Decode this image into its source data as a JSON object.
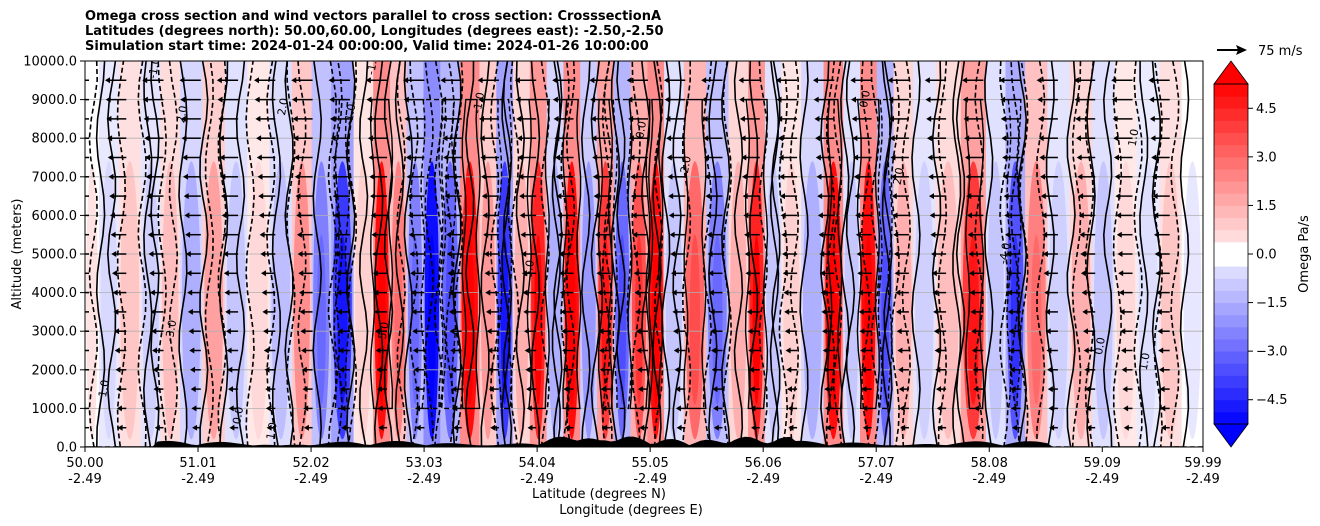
{
  "chart_data": {
    "type": "heatmap",
    "title_lines": [
      "Omega cross section and wind vectors parallel to cross section: CrosssectionA",
      "Latitudes (degrees north): 50.00,60.00, Longitudes (degrees east): -2.50,-2.50",
      "Simulation start time: 2024-01-24 00:00:00, Valid time: 2024-01-26 10:00:00"
    ],
    "xlabel": "Latitude (degrees N)",
    "xlabel2": "Longitude (degrees E)",
    "ylabel": "Altitude (meters)",
    "xlim": [
      50.0,
      59.99
    ],
    "ylim": [
      0,
      10000
    ],
    "x_ticks": [
      {
        "value": 50.0,
        "lat": "50.00",
        "lon": "-2.49"
      },
      {
        "value": 51.01,
        "lat": "51.01",
        "lon": "-2.49"
      },
      {
        "value": 52.02,
        "lat": "52.02",
        "lon": "-2.49"
      },
      {
        "value": 53.03,
        "lat": "53.03",
        "lon": "-2.49"
      },
      {
        "value": 54.04,
        "lat": "54.04",
        "lon": "-2.49"
      },
      {
        "value": 55.05,
        "lat": "55.05",
        "lon": "-2.49"
      },
      {
        "value": 56.06,
        "lat": "56.06",
        "lon": "-2.49"
      },
      {
        "value": 57.07,
        "lat": "57.07",
        "lon": "-2.49"
      },
      {
        "value": 58.08,
        "lat": "58.08",
        "lon": "-2.49"
      },
      {
        "value": 59.09,
        "lat": "59.09",
        "lon": "-2.49"
      },
      {
        "value": 59.99,
        "lat": "59.99",
        "lon": "-2.49"
      }
    ],
    "y_ticks": [
      {
        "value": 0,
        "label": "0.0"
      },
      {
        "value": 1000,
        "label": "1000.0"
      },
      {
        "value": 2000,
        "label": "2000.0"
      },
      {
        "value": 3000,
        "label": "3000.0"
      },
      {
        "value": 4000,
        "label": "4000.0"
      },
      {
        "value": 5000,
        "label": "5000.0"
      },
      {
        "value": 6000,
        "label": "6000.0"
      },
      {
        "value": 7000,
        "label": "7000.0"
      },
      {
        "value": 8000,
        "label": "8000.0"
      },
      {
        "value": 9000,
        "label": "9000.0"
      },
      {
        "value": 10000,
        "label": "10000.0"
      }
    ],
    "colorbar": {
      "label": "Omega Pa/s",
      "range": [
        -5.25,
        5.25
      ],
      "step": 0.375,
      "ticks": [
        {
          "value": 4.5,
          "label": "4.5"
        },
        {
          "value": 3.0,
          "label": "3.0"
        },
        {
          "value": 1.5,
          "label": "1.5"
        },
        {
          "value": 0.0,
          "label": "0.0"
        },
        {
          "value": -1.5,
          "label": "−1.5"
        },
        {
          "value": -3.0,
          "label": "−3.0"
        },
        {
          "value": -4.5,
          "label": "−4.5"
        }
      ]
    },
    "wind_key": {
      "label": "75 m/s"
    },
    "omega_columns": [
      {
        "lat": 50.05,
        "omega": 0.4
      },
      {
        "lat": 50.2,
        "omega": -0.6
      },
      {
        "lat": 50.4,
        "omega": 1.0
      },
      {
        "lat": 50.6,
        "omega": -0.8
      },
      {
        "lat": 50.75,
        "omega": 1.2
      },
      {
        "lat": 50.95,
        "omega": -1.5
      },
      {
        "lat": 51.15,
        "omega": 1.8
      },
      {
        "lat": 51.35,
        "omega": -1.0
      },
      {
        "lat": 51.55,
        "omega": 0.6
      },
      {
        "lat": 51.75,
        "omega": -1.2
      },
      {
        "lat": 51.95,
        "omega": 2.2
      },
      {
        "lat": 52.1,
        "omega": -2.5
      },
      {
        "lat": 52.3,
        "omega": -4.0
      },
      {
        "lat": 52.5,
        "omega": 0.8
      },
      {
        "lat": 52.65,
        "omega": 5.0
      },
      {
        "lat": 52.8,
        "omega": 2.5
      },
      {
        "lat": 52.95,
        "omega": -2.5
      },
      {
        "lat": 53.1,
        "omega": -5.0
      },
      {
        "lat": 53.25,
        "omega": -3.0
      },
      {
        "lat": 53.45,
        "omega": 5.0
      },
      {
        "lat": 53.6,
        "omega": 2.0
      },
      {
        "lat": 53.75,
        "omega": -4.0
      },
      {
        "lat": 53.9,
        "omega": 1.5
      },
      {
        "lat": 54.05,
        "omega": 4.5
      },
      {
        "lat": 54.2,
        "omega": -1.5
      },
      {
        "lat": 54.35,
        "omega": 5.0
      },
      {
        "lat": 54.5,
        "omega": -2.0
      },
      {
        "lat": 54.65,
        "omega": 4.0
      },
      {
        "lat": 54.8,
        "omega": -3.0
      },
      {
        "lat": 54.95,
        "omega": 3.5
      },
      {
        "lat": 55.1,
        "omega": 5.0
      },
      {
        "lat": 55.25,
        "omega": -1.0
      },
      {
        "lat": 55.45,
        "omega": 3.0
      },
      {
        "lat": 55.65,
        "omega": -2.5
      },
      {
        "lat": 55.85,
        "omega": 1.5
      },
      {
        "lat": 56.0,
        "omega": 4.5
      },
      {
        "lat": 56.15,
        "omega": -1.0
      },
      {
        "lat": 56.3,
        "omega": 0.8
      },
      {
        "lat": 56.5,
        "omega": -1.5
      },
      {
        "lat": 56.7,
        "omega": 5.0
      },
      {
        "lat": 56.85,
        "omega": -1.0
      },
      {
        "lat": 57.0,
        "omega": 5.0
      },
      {
        "lat": 57.15,
        "omega": -3.0
      },
      {
        "lat": 57.3,
        "omega": 1.5
      },
      {
        "lat": 57.5,
        "omega": -0.8
      },
      {
        "lat": 57.7,
        "omega": 1.2
      },
      {
        "lat": 57.95,
        "omega": 4.0
      },
      {
        "lat": 58.15,
        "omega": -1.0
      },
      {
        "lat": 58.3,
        "omega": -3.5
      },
      {
        "lat": 58.5,
        "omega": 2.5
      },
      {
        "lat": 58.7,
        "omega": -0.8
      },
      {
        "lat": 58.9,
        "omega": 1.5
      },
      {
        "lat": 59.1,
        "omega": -1.0
      },
      {
        "lat": 59.3,
        "omega": 0.6
      },
      {
        "lat": 59.5,
        "omega": -0.5
      },
      {
        "lat": 59.7,
        "omega": 1.0
      },
      {
        "lat": 59.9,
        "omega": -0.3
      }
    ],
    "contour_labels": [
      {
        "text": "1.0",
        "lat": 50.2,
        "alt": 1500
      },
      {
        "text": "-1.0",
        "lat": 50.65,
        "alt": 9800
      },
      {
        "text": "2.0",
        "lat": 50.9,
        "alt": 8600
      },
      {
        "text": "-3.0",
        "lat": 50.8,
        "alt": 3000
      },
      {
        "text": "2.0",
        "lat": 51.8,
        "alt": 8800
      },
      {
        "text": "-1.0",
        "lat": 52.6,
        "alt": 9900
      },
      {
        "text": "-1.0",
        "lat": 52.4,
        "alt": 8600
      },
      {
        "text": "5.0",
        "lat": 52.7,
        "alt": 3000
      },
      {
        "text": "-1.0",
        "lat": 53.55,
        "alt": 8900
      },
      {
        "text": "5.0",
        "lat": 54.0,
        "alt": 4600
      },
      {
        "text": "0.0",
        "lat": 55.0,
        "alt": 8200
      },
      {
        "text": "2.0",
        "lat": 55.4,
        "alt": 7300
      },
      {
        "text": "0.0",
        "lat": 57.0,
        "alt": 9000
      },
      {
        "text": "2.0",
        "lat": 57.3,
        "alt": 7000
      },
      {
        "text": "1.0",
        "lat": 59.4,
        "alt": 8000
      },
      {
        "text": "0.0",
        "lat": 59.1,
        "alt": 2600
      },
      {
        "text": "-4.0",
        "lat": 58.25,
        "alt": 5000
      },
      {
        "text": "1.0",
        "lat": 59.5,
        "alt": 2200
      },
      {
        "text": "1.0",
        "lat": 51.7,
        "alt": 400
      },
      {
        "text": "0.0",
        "lat": 51.4,
        "alt": 800
      }
    ]
  }
}
